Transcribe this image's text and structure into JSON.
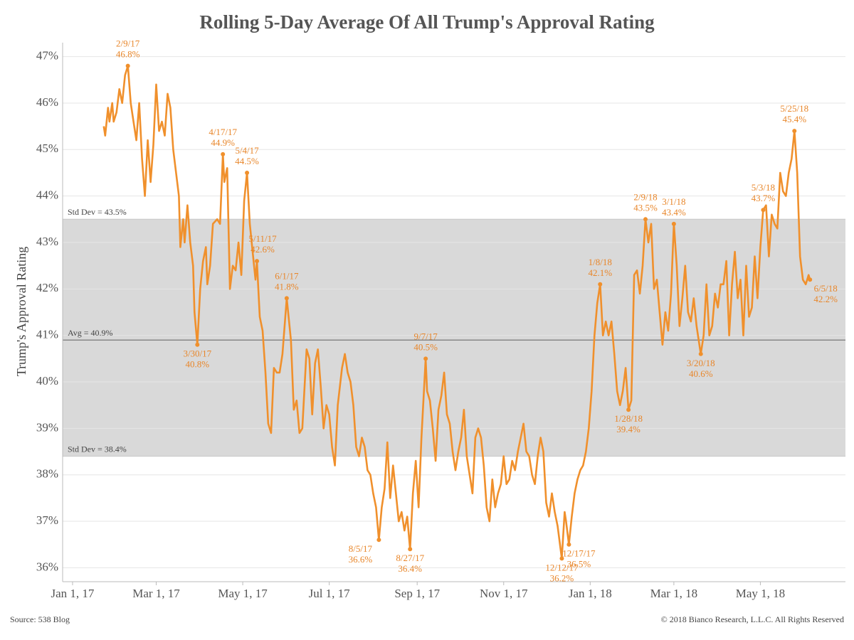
{
  "chart_data": {
    "type": "line",
    "title": "Rolling 5-Day Average Of All Trump's Approval Rating",
    "y_label": "Trump's Approval Rating",
    "source": "Source: 538 Blog",
    "copyright": "© 2018 Bianco Research, L.L.C. All Rights Reserved",
    "color": "#f0902c",
    "grid": true,
    "xlim": [
      "2016-12-25",
      "2018-06-30"
    ],
    "xticks": [
      {
        "value": "2017-01-01",
        "label": "Jan 1, 17"
      },
      {
        "value": "2017-03-01",
        "label": "Mar 1, 17"
      },
      {
        "value": "2017-05-01",
        "label": "May 1, 17"
      },
      {
        "value": "2017-07-01",
        "label": "Jul 1, 17"
      },
      {
        "value": "2017-09-01",
        "label": "Sep 1, 17"
      },
      {
        "value": "2017-11-01",
        "label": "Nov 1, 17"
      },
      {
        "value": "2018-01-01",
        "label": "Jan 1, 18"
      },
      {
        "value": "2018-03-01",
        "label": "Mar 1, 18"
      },
      {
        "value": "2018-05-01",
        "label": "May 1, 18"
      }
    ],
    "ylim": [
      35.7,
      47.3
    ],
    "yticks": [
      {
        "value": 36,
        "label": "36%"
      },
      {
        "value": 37,
        "label": "37%"
      },
      {
        "value": 38,
        "label": "38%"
      },
      {
        "value": 39,
        "label": "39%"
      },
      {
        "value": 40,
        "label": "40%"
      },
      {
        "value": 41,
        "label": "41%"
      },
      {
        "value": 42,
        "label": "42%"
      },
      {
        "value": 43,
        "label": "43%"
      },
      {
        "value": 44,
        "label": "44%"
      },
      {
        "value": 45,
        "label": "45%"
      },
      {
        "value": 46,
        "label": "46%"
      },
      {
        "value": 47,
        "label": "47%"
      }
    ],
    "reference_lines": [
      {
        "value": 43.5,
        "label": "Std Dev = 43.5%"
      },
      {
        "value": 40.9,
        "label": "Avg = 40.9%"
      },
      {
        "value": 38.4,
        "label": "Std Dev = 38.4%"
      }
    ],
    "x": [
      "2017-01-23",
      "2017-01-24",
      "2017-01-26",
      "2017-01-27",
      "2017-01-29",
      "2017-01-30",
      "2017-02-01",
      "2017-02-03",
      "2017-02-05",
      "2017-02-07",
      "2017-02-09",
      "2017-02-11",
      "2017-02-13",
      "2017-02-15",
      "2017-02-17",
      "2017-02-19",
      "2017-02-21",
      "2017-02-23",
      "2017-02-25",
      "2017-02-27",
      "2017-03-01",
      "2017-03-03",
      "2017-03-05",
      "2017-03-07",
      "2017-03-09",
      "2017-03-11",
      "2017-03-13",
      "2017-03-15",
      "2017-03-17",
      "2017-03-18",
      "2017-03-20",
      "2017-03-21",
      "2017-03-23",
      "2017-03-25",
      "2017-03-27",
      "2017-03-28",
      "2017-03-30",
      "2017-04-01",
      "2017-04-03",
      "2017-04-05",
      "2017-04-06",
      "2017-04-08",
      "2017-04-10",
      "2017-04-13",
      "2017-04-15",
      "2017-04-17",
      "2017-04-18",
      "2017-04-20",
      "2017-04-22",
      "2017-04-24",
      "2017-04-26",
      "2017-04-28",
      "2017-04-30",
      "2017-05-02",
      "2017-05-04",
      "2017-05-06",
      "2017-05-08",
      "2017-05-10",
      "2017-05-11",
      "2017-05-13",
      "2017-05-15",
      "2017-05-17",
      "2017-05-19",
      "2017-05-21",
      "2017-05-23",
      "2017-05-25",
      "2017-05-27",
      "2017-05-29",
      "2017-06-01",
      "2017-06-04",
      "2017-06-06",
      "2017-06-08",
      "2017-06-10",
      "2017-06-12",
      "2017-06-15",
      "2017-06-17",
      "2017-06-19",
      "2017-06-21",
      "2017-06-23",
      "2017-06-25",
      "2017-06-27",
      "2017-06-29",
      "2017-07-01",
      "2017-07-03",
      "2017-07-05",
      "2017-07-07",
      "2017-07-10",
      "2017-07-12",
      "2017-07-14",
      "2017-07-16",
      "2017-07-18",
      "2017-07-20",
      "2017-07-22",
      "2017-07-24",
      "2017-07-26",
      "2017-07-28",
      "2017-07-30",
      "2017-08-01",
      "2017-08-03",
      "2017-08-05",
      "2017-08-07",
      "2017-08-09",
      "2017-08-11",
      "2017-08-13",
      "2017-08-15",
      "2017-08-17",
      "2017-08-19",
      "2017-08-21",
      "2017-08-23",
      "2017-08-25",
      "2017-08-27",
      "2017-08-29",
      "2017-08-31",
      "2017-09-02",
      "2017-09-04",
      "2017-09-07",
      "2017-09-08",
      "2017-09-10",
      "2017-09-12",
      "2017-09-14",
      "2017-09-16",
      "2017-09-18",
      "2017-09-20",
      "2017-09-22",
      "2017-09-24",
      "2017-09-26",
      "2017-09-28",
      "2017-09-30",
      "2017-10-02",
      "2017-10-04",
      "2017-10-06",
      "2017-10-08",
      "2017-10-10",
      "2017-10-12",
      "2017-10-14",
      "2017-10-16",
      "2017-10-18",
      "2017-10-20",
      "2017-10-22",
      "2017-10-24",
      "2017-10-26",
      "2017-10-28",
      "2017-10-30",
      "2017-11-01",
      "2017-11-03",
      "2017-11-05",
      "2017-11-07",
      "2017-11-09",
      "2017-11-11",
      "2017-11-13",
      "2017-11-15",
      "2017-11-17",
      "2017-11-19",
      "2017-11-21",
      "2017-11-23",
      "2017-11-25",
      "2017-11-27",
      "2017-11-29",
      "2017-12-01",
      "2017-12-03",
      "2017-12-05",
      "2017-12-07",
      "2017-12-09",
      "2017-12-12",
      "2017-12-14",
      "2017-12-15",
      "2017-12-17",
      "2017-12-19",
      "2017-12-21",
      "2017-12-23",
      "2017-12-25",
      "2017-12-27",
      "2017-12-29",
      "2017-12-31",
      "2018-01-02",
      "2018-01-04",
      "2018-01-06",
      "2018-01-08",
      "2018-01-10",
      "2018-01-12",
      "2018-01-14",
      "2018-01-16",
      "2018-01-18",
      "2018-01-20",
      "2018-01-22",
      "2018-01-24",
      "2018-01-26",
      "2018-01-28",
      "2018-01-30",
      "2018-02-01",
      "2018-02-03",
      "2018-02-05",
      "2018-02-07",
      "2018-02-09",
      "2018-02-11",
      "2018-02-13",
      "2018-02-15",
      "2018-02-17",
      "2018-02-19",
      "2018-02-21",
      "2018-02-23",
      "2018-02-25",
      "2018-02-27",
      "2018-03-01",
      "2018-03-03",
      "2018-03-05",
      "2018-03-07",
      "2018-03-09",
      "2018-03-11",
      "2018-03-13",
      "2018-03-15",
      "2018-03-17",
      "2018-03-20",
      "2018-03-22",
      "2018-03-24",
      "2018-03-26",
      "2018-03-28",
      "2018-03-30",
      "2018-04-01",
      "2018-04-03",
      "2018-04-05",
      "2018-04-07",
      "2018-04-09",
      "2018-04-11",
      "2018-04-13",
      "2018-04-15",
      "2018-04-17",
      "2018-04-19",
      "2018-04-21",
      "2018-04-23",
      "2018-04-25",
      "2018-04-27",
      "2018-04-29",
      "2018-05-01",
      "2018-05-03",
      "2018-05-05",
      "2018-05-07",
      "2018-05-09",
      "2018-05-11",
      "2018-05-13",
      "2018-05-15",
      "2018-05-17",
      "2018-05-19",
      "2018-05-21",
      "2018-05-23",
      "2018-05-25",
      "2018-05-27",
      "2018-05-29",
      "2018-05-31",
      "2018-06-02",
      "2018-06-04",
      "2018-06-05"
    ],
    "values": [
      45.5,
      45.3,
      45.9,
      45.6,
      46.0,
      45.6,
      45.8,
      46.3,
      46.0,
      46.6,
      46.8,
      46.0,
      45.6,
      45.2,
      46.0,
      44.8,
      44.0,
      45.2,
      44.3,
      45.1,
      46.4,
      45.4,
      45.6,
      45.3,
      46.2,
      45.9,
      45.0,
      44.5,
      44.0,
      42.9,
      43.5,
      43.0,
      43.8,
      43.0,
      42.5,
      41.5,
      40.8,
      42.0,
      42.6,
      42.9,
      42.1,
      42.5,
      43.4,
      43.5,
      43.4,
      44.9,
      44.3,
      44.6,
      42.0,
      42.5,
      42.4,
      43.0,
      42.3,
      43.9,
      44.5,
      43.4,
      42.8,
      42.2,
      42.6,
      41.4,
      41.1,
      40.2,
      39.1,
      38.9,
      40.3,
      40.2,
      40.2,
      40.6,
      41.8,
      40.9,
      39.4,
      39.6,
      38.9,
      39.0,
      40.7,
      40.5,
      39.3,
      40.4,
      40.7,
      39.9,
      39.0,
      39.5,
      39.3,
      38.6,
      38.2,
      39.5,
      40.3,
      40.6,
      40.2,
      40.0,
      39.5,
      38.6,
      38.4,
      38.8,
      38.6,
      38.1,
      38.0,
      37.6,
      37.3,
      36.6,
      37.3,
      37.7,
      38.7,
      37.5,
      38.2,
      37.6,
      37.0,
      37.2,
      36.8,
      37.1,
      36.4,
      37.6,
      38.3,
      37.3,
      38.8,
      40.5,
      39.8,
      39.6,
      39.0,
      38.3,
      39.4,
      39.7,
      40.2,
      39.3,
      39.1,
      38.5,
      38.1,
      38.5,
      38.8,
      39.4,
      38.4,
      38.0,
      37.6,
      38.8,
      39.0,
      38.8,
      38.2,
      37.3,
      37.0,
      37.9,
      37.3,
      37.6,
      37.8,
      38.4,
      37.8,
      37.9,
      38.3,
      38.1,
      38.5,
      38.8,
      39.1,
      38.5,
      38.4,
      38.0,
      37.8,
      38.4,
      38.8,
      38.5,
      37.4,
      37.1,
      37.6,
      37.2,
      36.9,
      36.2,
      37.2,
      37.0,
      36.5,
      37.1,
      37.6,
      37.9,
      38.1,
      38.2,
      38.5,
      39.0,
      39.8,
      41.0,
      41.7,
      42.1,
      41.0,
      41.3,
      41.0,
      41.3,
      40.6,
      39.8,
      39.5,
      39.8,
      40.3,
      39.4,
      39.6,
      42.3,
      42.4,
      41.9,
      42.5,
      43.5,
      43.0,
      43.4,
      42.0,
      42.2,
      41.5,
      40.8,
      41.5,
      41.1,
      41.9,
      43.4,
      42.5,
      41.2,
      41.8,
      42.5,
      41.5,
      41.3,
      41.8,
      41.2,
      40.6,
      41.0,
      42.1,
      41.0,
      41.2,
      41.9,
      41.6,
      42.1,
      42.1,
      42.6,
      41.0,
      42.1,
      42.8,
      41.8,
      42.2,
      41.0,
      42.5,
      41.4,
      41.6,
      42.7,
      41.8,
      42.9,
      43.7,
      43.8,
      42.7,
      43.6,
      43.4,
      43.3,
      44.5,
      44.1,
      44.0,
      44.5,
      44.8,
      45.4,
      44.5,
      42.7,
      42.2,
      42.1,
      42.3,
      42.2
    ],
    "annotations": [
      {
        "x": "2017-02-09",
        "y": 46.8,
        "date_label": "2/9/17",
        "value_label": "46.8%"
      },
      {
        "x": "2017-03-30",
        "y": 40.8,
        "date_label": "3/30/17",
        "value_label": "40.8%"
      },
      {
        "x": "2017-04-17",
        "y": 44.9,
        "date_label": "4/17/17",
        "value_label": "44.9%"
      },
      {
        "x": "2017-05-04",
        "y": 44.5,
        "date_label": "5/4/17",
        "value_label": "44.5%"
      },
      {
        "x": "2017-05-11",
        "y": 42.6,
        "date_label": "5/11/17",
        "value_label": "42.6%"
      },
      {
        "x": "2017-06-01",
        "y": 41.8,
        "date_label": "6/1/17",
        "value_label": "41.8%"
      },
      {
        "x": "2017-08-05",
        "y": 36.6,
        "date_label": "8/5/17",
        "value_label": "36.6%"
      },
      {
        "x": "2017-08-27",
        "y": 36.4,
        "date_label": "8/27/17",
        "value_label": "36.4%"
      },
      {
        "x": "2017-09-07",
        "y": 40.5,
        "date_label": "9/7/17",
        "value_label": "40.5%"
      },
      {
        "x": "2017-12-12",
        "y": 36.2,
        "date_label": "12/12/17",
        "value_label": "36.2%"
      },
      {
        "x": "2017-12-17",
        "y": 36.5,
        "date_label": "12/17/17",
        "value_label": "36.5%"
      },
      {
        "x": "2018-01-08",
        "y": 42.1,
        "date_label": "1/8/18",
        "value_label": "42.1%"
      },
      {
        "x": "2018-01-28",
        "y": 39.4,
        "date_label": "1/28/18",
        "value_label": "39.4%"
      },
      {
        "x": "2018-02-09",
        "y": 43.5,
        "date_label": "2/9/18",
        "value_label": "43.5%"
      },
      {
        "x": "2018-03-01",
        "y": 43.4,
        "date_label": "3/1/18",
        "value_label": "43.4%"
      },
      {
        "x": "2018-03-20",
        "y": 40.6,
        "date_label": "3/20/18",
        "value_label": "40.6%"
      },
      {
        "x": "2018-05-03",
        "y": 43.7,
        "date_label": "5/3/18",
        "value_label": "43.7%"
      },
      {
        "x": "2018-05-25",
        "y": 45.4,
        "date_label": "5/25/18",
        "value_label": "45.4%"
      },
      {
        "x": "2018-06-05",
        "y": 42.2,
        "date_label": "6/5/18",
        "value_label": "42.2%"
      }
    ]
  }
}
